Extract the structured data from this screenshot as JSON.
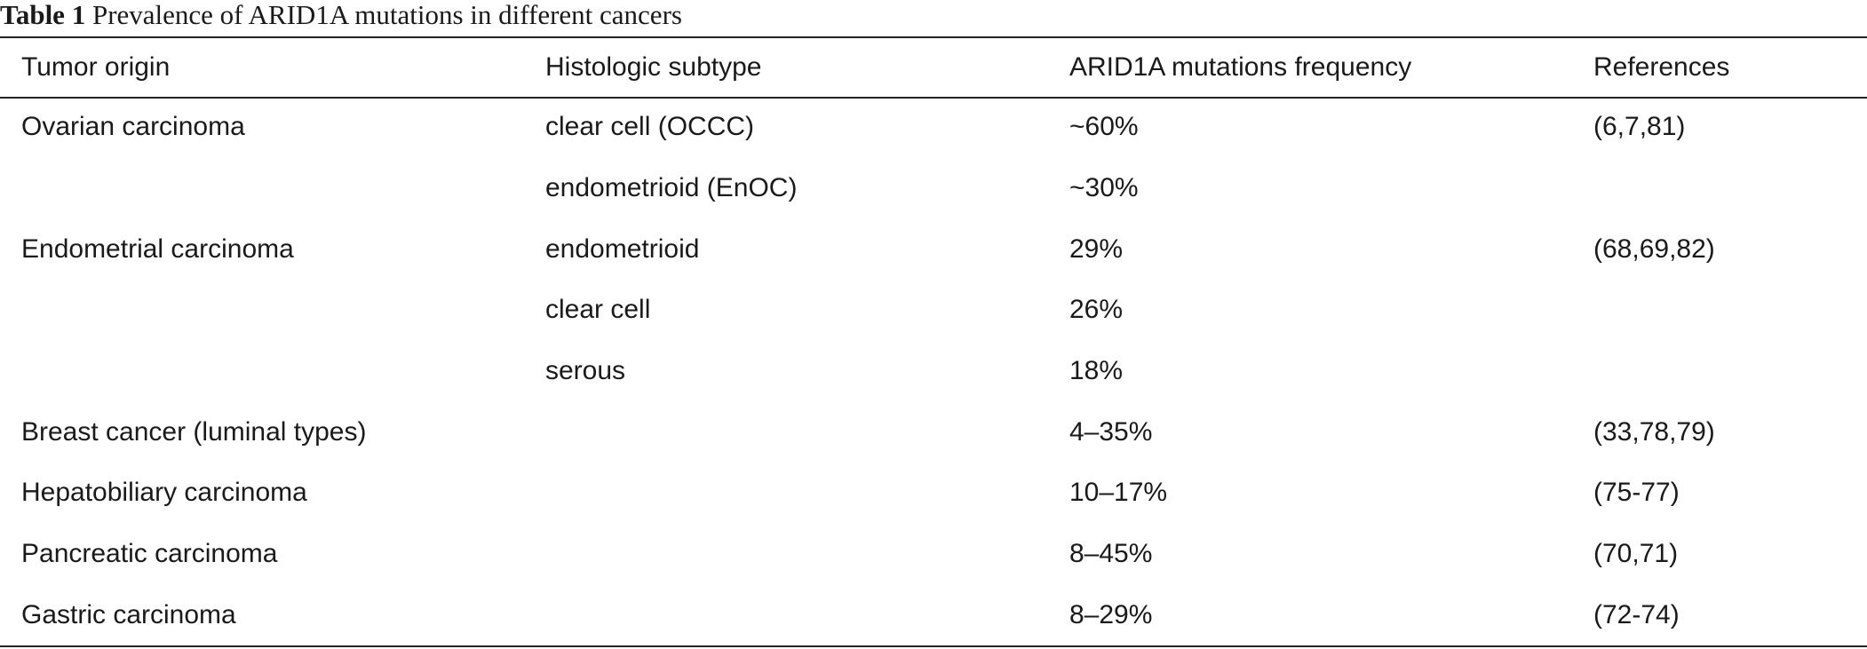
{
  "caption": {
    "label": "Table 1",
    "text": "Prevalence of ARID1A mutations in different cancers"
  },
  "table": {
    "headers": [
      "Tumor origin",
      "Histologic subtype",
      "ARID1A mutations frequency",
      "References"
    ],
    "rows": [
      [
        "Ovarian carcinoma",
        "clear cell (OCCC)",
        "~60%",
        "(6,7,81)"
      ],
      [
        "",
        "endometrioid (EnOC)",
        "~30%",
        ""
      ],
      [
        "Endometrial carcinoma",
        "endometrioid",
        "29%",
        "(68,69,82)"
      ],
      [
        "",
        "clear cell",
        "26%",
        ""
      ],
      [
        "",
        "serous",
        "18%",
        ""
      ],
      [
        "Breast cancer (luminal types)",
        "",
        "4–35%",
        "(33,78,79)"
      ],
      [
        "Hepatobiliary carcinoma",
        "",
        "10–17%",
        "(75-77)"
      ],
      [
        "Pancreatic carcinoma",
        "",
        "8–45%",
        "(70,71)"
      ],
      [
        "Gastric carcinoma",
        "",
        "8–29%",
        "(72-74)"
      ]
    ]
  }
}
